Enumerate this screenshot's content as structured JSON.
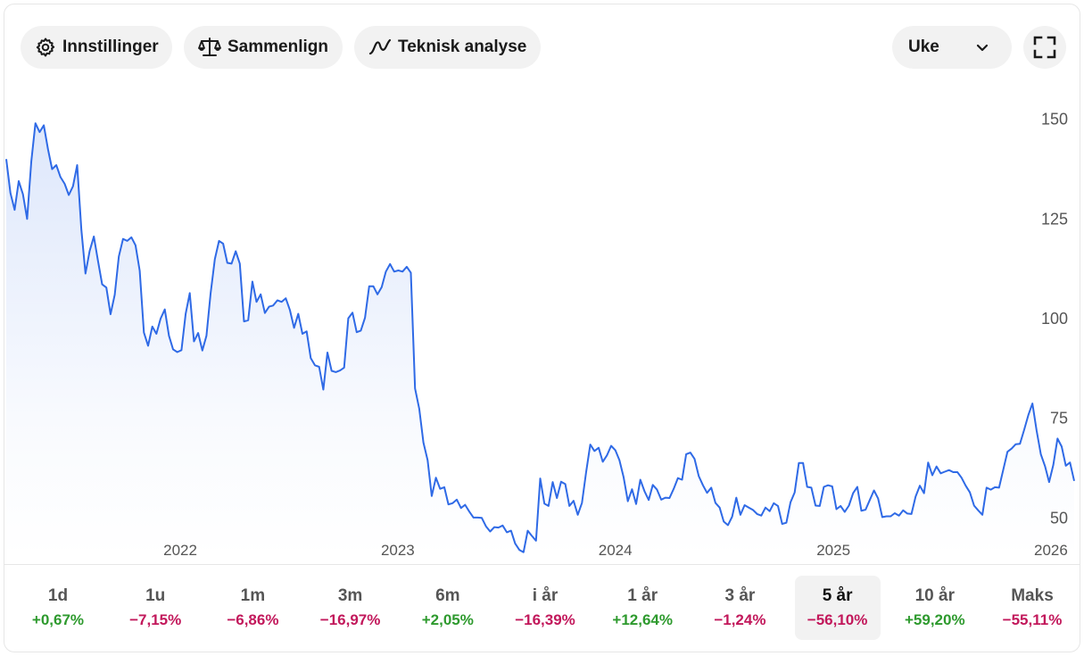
{
  "toolbar": {
    "settings_label": "Innstillinger",
    "compare_label": "Sammenlign",
    "technical_label": "Teknisk analyse",
    "interval_value": "Uke"
  },
  "colors": {
    "line": "#2f6ae6",
    "positive": "#2e9a2e",
    "negative": "#c2185b"
  },
  "ranges": [
    {
      "label": "1d",
      "change": "+0,67%",
      "sign": "pos",
      "active": false
    },
    {
      "label": "1u",
      "change": "−7,15%",
      "sign": "neg",
      "active": false
    },
    {
      "label": "1m",
      "change": "−6,86%",
      "sign": "neg",
      "active": false
    },
    {
      "label": "3m",
      "change": "−16,97%",
      "sign": "neg",
      "active": false
    },
    {
      "label": "6m",
      "change": "+2,05%",
      "sign": "pos",
      "active": false
    },
    {
      "label": "i år",
      "change": "−16,39%",
      "sign": "neg",
      "active": false
    },
    {
      "label": "1 år",
      "change": "+12,64%",
      "sign": "pos",
      "active": false
    },
    {
      "label": "3 år",
      "change": "−1,24%",
      "sign": "neg",
      "active": false
    },
    {
      "label": "5 år",
      "change": "−56,10%",
      "sign": "neg",
      "active": true
    },
    {
      "label": "10 år",
      "change": "+59,20%",
      "sign": "pos",
      "active": false
    },
    {
      "label": "Maks",
      "change": "−55,11%",
      "sign": "neg",
      "active": false
    }
  ],
  "chart_data": {
    "type": "area",
    "x_ticks": [
      "2022",
      "2023",
      "2024",
      "2025",
      "2026"
    ],
    "y_ticks": [
      50,
      75,
      100,
      125,
      150
    ],
    "ylim": [
      40,
      160
    ],
    "xlim": [
      "2021-03-15",
      "2026-02-15"
    ],
    "y_axis_position": "right",
    "grid": false,
    "legend": "none",
    "x": [
      "2021-03-15",
      "2021-03-22",
      "2021-03-29",
      "2021-04-05",
      "2021-04-12",
      "2021-04-19",
      "2021-04-26",
      "2021-05-03",
      "2021-05-10",
      "2021-05-17",
      "2021-05-24",
      "2021-05-31",
      "2021-06-07",
      "2021-06-14",
      "2021-06-21",
      "2021-06-28",
      "2021-07-05",
      "2021-07-12",
      "2021-07-19",
      "2021-07-26",
      "2021-08-02",
      "2021-08-09",
      "2021-08-16",
      "2021-08-23",
      "2021-08-30",
      "2021-09-06",
      "2021-09-13",
      "2021-09-20",
      "2021-09-27",
      "2021-10-04",
      "2021-10-11",
      "2021-10-18",
      "2021-10-25",
      "2021-11-01",
      "2021-11-08",
      "2021-11-15",
      "2021-11-22",
      "2021-11-29",
      "2021-12-06",
      "2021-12-13",
      "2021-12-20",
      "2021-12-27",
      "2022-01-03",
      "2022-01-10",
      "2022-01-17",
      "2022-01-24",
      "2022-01-31",
      "2022-02-07",
      "2022-02-14",
      "2022-02-21",
      "2022-02-28",
      "2022-03-07",
      "2022-03-14",
      "2022-03-21",
      "2022-03-28",
      "2022-04-04",
      "2022-04-11",
      "2022-04-18",
      "2022-04-25",
      "2022-05-02",
      "2022-05-09",
      "2022-05-16",
      "2022-05-23",
      "2022-05-30",
      "2022-06-06",
      "2022-06-13",
      "2022-06-20",
      "2022-06-27",
      "2022-07-04",
      "2022-07-11",
      "2022-07-18",
      "2022-07-25",
      "2022-08-01",
      "2022-08-08",
      "2022-08-15",
      "2022-08-22",
      "2022-08-29",
      "2022-09-05",
      "2022-09-12",
      "2022-09-19",
      "2022-09-26",
      "2022-10-03",
      "2022-10-10",
      "2022-10-17",
      "2022-10-24",
      "2022-10-31",
      "2022-11-07",
      "2022-11-14",
      "2022-11-21",
      "2022-11-28",
      "2022-12-05",
      "2022-12-12",
      "2022-12-19",
      "2022-12-26",
      "2023-01-02",
      "2023-01-09",
      "2023-01-16",
      "2023-01-23",
      "2023-01-30",
      "2023-02-06",
      "2023-02-13",
      "2023-02-20",
      "2023-02-27",
      "2023-03-06",
      "2023-03-13",
      "2023-03-20",
      "2023-03-27",
      "2023-04-03",
      "2023-04-10",
      "2023-04-17",
      "2023-04-24",
      "2023-05-01",
      "2023-05-08",
      "2023-05-15",
      "2023-05-22",
      "2023-05-29",
      "2023-06-05",
      "2023-06-12",
      "2023-06-19",
      "2023-06-26",
      "2023-07-03",
      "2023-07-10",
      "2023-07-17",
      "2023-07-24",
      "2023-07-31",
      "2023-08-07",
      "2023-08-14",
      "2023-08-21",
      "2023-08-28",
      "2023-09-04",
      "2023-09-11",
      "2023-09-18",
      "2023-09-25",
      "2023-10-02",
      "2023-10-09",
      "2023-10-16",
      "2023-10-23",
      "2023-10-30",
      "2023-11-06",
      "2023-11-13",
      "2023-11-20",
      "2023-11-27",
      "2023-12-04",
      "2023-12-11",
      "2023-12-18",
      "2023-12-25",
      "2024-01-01",
      "2024-01-08",
      "2024-01-15",
      "2024-01-22",
      "2024-01-29",
      "2024-02-05",
      "2024-02-12",
      "2024-02-19",
      "2024-02-26",
      "2024-03-04",
      "2024-03-11",
      "2024-03-18",
      "2024-03-25",
      "2024-04-01",
      "2024-04-08",
      "2024-04-15",
      "2024-04-22",
      "2024-04-29",
      "2024-05-06",
      "2024-05-13",
      "2024-05-20",
      "2024-05-27",
      "2024-06-03",
      "2024-06-10",
      "2024-06-17",
      "2024-06-24",
      "2024-07-01",
      "2024-07-08",
      "2024-07-15",
      "2024-07-22",
      "2024-07-29",
      "2024-08-05",
      "2024-08-12",
      "2024-08-19",
      "2024-08-26",
      "2024-09-02",
      "2024-09-09",
      "2024-09-16",
      "2024-09-23",
      "2024-09-30",
      "2024-10-07",
      "2024-10-14",
      "2024-10-21",
      "2024-10-28",
      "2024-11-04",
      "2024-11-11",
      "2024-11-18",
      "2024-11-25",
      "2024-12-02",
      "2024-12-09",
      "2024-12-16",
      "2024-12-23",
      "2024-12-30",
      "2025-01-06",
      "2025-01-13",
      "2025-01-20",
      "2025-01-27",
      "2025-02-03",
      "2025-02-10",
      "2025-02-17",
      "2025-02-24",
      "2025-03-03",
      "2025-03-10",
      "2025-03-17",
      "2025-03-24",
      "2025-03-31",
      "2025-04-07",
      "2025-04-14",
      "2025-04-21",
      "2025-04-28",
      "2025-05-05",
      "2025-05-12",
      "2025-05-19",
      "2025-05-26",
      "2025-06-02",
      "2025-06-09",
      "2025-06-16",
      "2025-06-23",
      "2025-06-30",
      "2025-07-07",
      "2025-07-14",
      "2025-07-21",
      "2025-07-28",
      "2025-08-04",
      "2025-08-11",
      "2025-08-18",
      "2025-08-25",
      "2025-09-01",
      "2025-09-08",
      "2025-09-15",
      "2025-09-22",
      "2025-09-29",
      "2025-10-06",
      "2025-10-13",
      "2025-10-20",
      "2025-10-27",
      "2025-11-03",
      "2025-11-10",
      "2025-11-17",
      "2025-11-24",
      "2025-12-01",
      "2025-12-08",
      "2025-12-15",
      "2025-12-22",
      "2025-12-29",
      "2026-01-05",
      "2026-01-12",
      "2026-01-19",
      "2026-01-26",
      "2026-02-02",
      "2026-02-09"
    ],
    "series": [
      {
        "values": [
          140.0,
          131.5,
          127.3,
          134.5,
          131.2,
          125.0,
          139.5,
          149.0,
          146.8,
          148.5,
          142.5,
          137.5,
          138.5,
          135.5,
          133.8,
          131.0,
          133.2,
          138.5,
          122.3,
          111.3,
          117.0,
          120.6,
          114.4,
          108.6,
          107.8,
          101.1,
          106.0,
          115.6,
          120.0,
          119.5,
          120.4,
          118.4,
          112.0,
          96.5,
          93.2,
          98.0,
          96.2,
          100.0,
          102.3,
          95.7,
          92.3,
          91.6,
          92.1,
          101.2,
          106.4,
          94.3,
          96.4,
          92.0,
          95.7,
          106.4,
          114.9,
          119.5,
          118.8,
          114.0,
          113.8,
          116.9,
          113.8,
          99.3,
          99.6,
          109.3,
          104.2,
          106.1,
          101.4,
          103.0,
          103.3,
          104.6,
          104.2,
          105.1,
          102.1,
          97.7,
          101.2,
          96.2,
          96.8,
          90.1,
          88.3,
          87.9,
          82.2,
          91.5,
          86.9,
          86.6,
          87.0,
          87.7,
          100.1,
          101.5,
          96.6,
          97.0,
          100.2,
          108.1,
          108.1,
          106.1,
          107.9,
          111.8,
          113.7,
          111.8,
          112.1,
          111.8,
          113.0,
          111.5,
          82.5,
          77.4,
          68.9,
          64.5,
          55.5,
          60.1,
          57.3,
          57.7,
          53.4,
          53.7,
          54.6,
          52.5,
          53.3,
          51.6,
          50.1,
          50.1,
          50.0,
          47.9,
          46.6,
          47.7,
          47.6,
          48.1,
          46.4,
          46.8,
          43.6,
          42.0,
          41.4,
          46.8,
          45.5,
          44.3,
          59.9,
          53.6,
          53.0,
          59.0,
          55.0,
          59.1,
          58.5,
          53.0,
          54.3,
          50.8,
          53.8,
          61.4,
          68.4,
          66.8,
          67.6,
          64.1,
          65.7,
          68.1,
          67.0,
          64.5,
          60.2,
          54.2,
          57.2,
          53.5,
          59.6,
          56.7,
          54.5,
          58.3,
          57.1,
          54.6,
          55.1,
          55.0,
          57.3,
          60.0,
          59.6,
          66.0,
          66.4,
          64.8,
          60.5,
          58.2,
          56.3,
          57.6,
          53.8,
          52.6,
          49.1,
          48.2,
          50.3,
          55.1,
          50.8,
          53.2,
          52.6,
          52.0,
          51.0,
          50.6,
          52.6,
          51.7,
          53.7,
          53.0,
          48.5,
          48.8,
          53.9,
          56.4,
          63.8,
          63.8,
          57.8,
          57.6,
          53.1,
          53.0,
          57.8,
          58.2,
          57.9,
          52.2,
          53.0,
          51.5,
          53.1,
          56.2,
          57.8,
          51.8,
          52.1,
          54.5,
          56.9,
          54.9,
          50.2,
          50.4,
          50.4,
          51.2,
          50.6,
          51.9,
          51.1,
          51.0,
          55.4,
          58.1,
          56.2,
          63.9,
          60.7,
          62.9,
          61.2,
          61.6,
          62.0,
          61.5,
          61.5,
          60.1,
          58.1,
          56.4,
          53.1,
          51.9,
          50.8,
          57.6,
          57.1,
          57.7,
          57.6,
          62.1,
          66.6,
          67.4,
          68.5,
          68.6,
          72.1,
          75.8,
          78.7,
          71.9,
          66.0,
          63.0,
          59.0,
          63.3,
          69.9,
          67.9,
          63.1,
          63.9,
          59.3
        ]
      }
    ]
  }
}
